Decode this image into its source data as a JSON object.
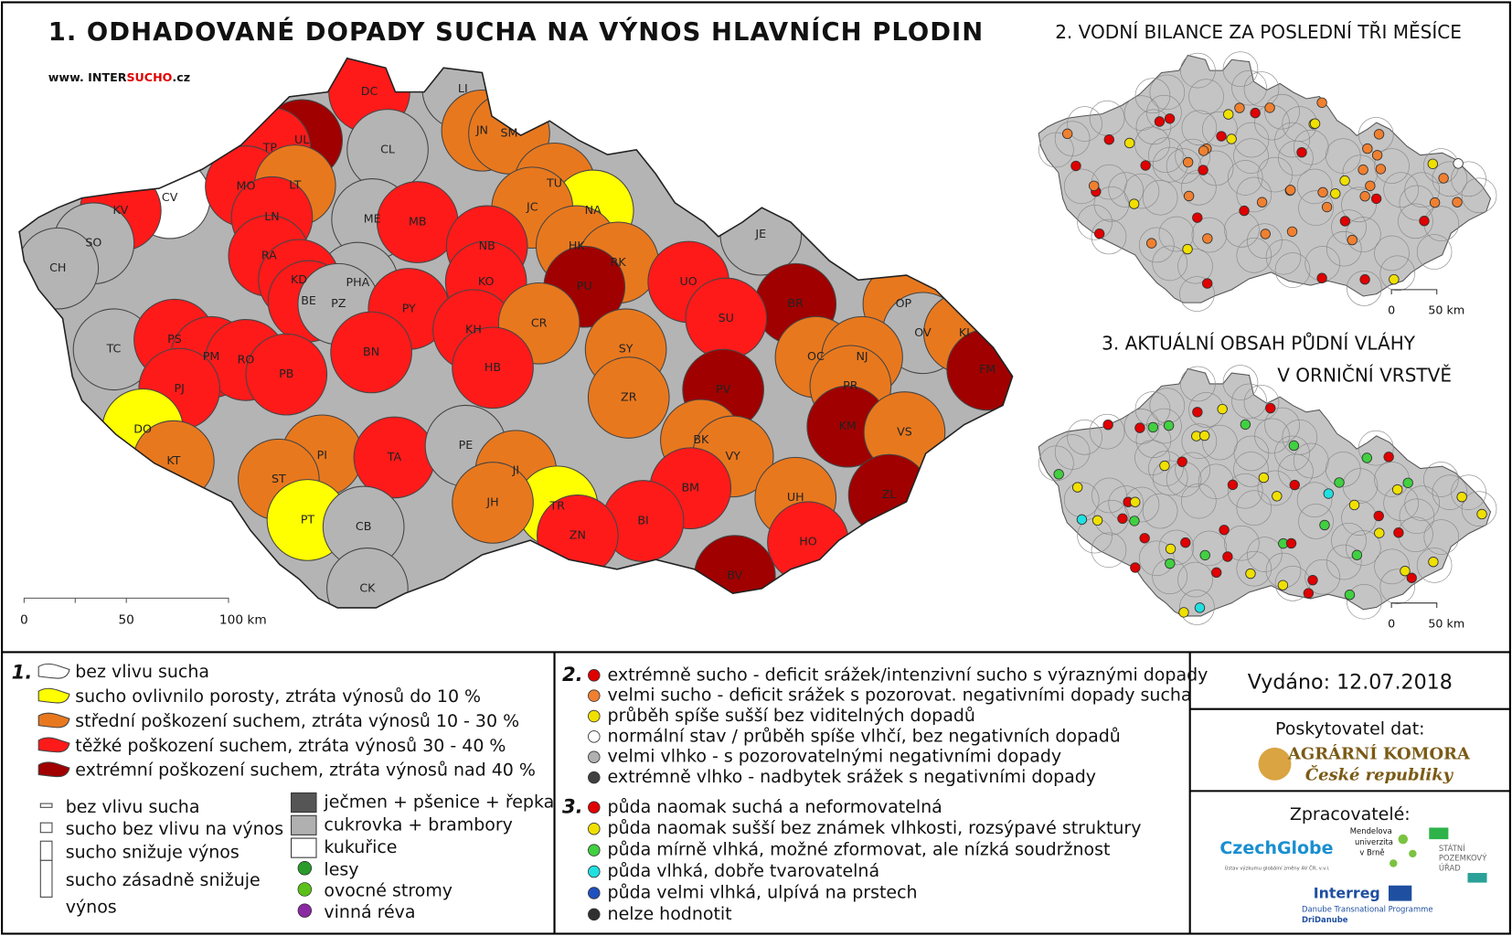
{
  "title": "1. ODHADOVANÉ DOPADY SUCHA NA VÝNOS HLAVNÍCH PLODIN",
  "website": {
    "prefix": "www. INTER",
    "highlight": "SUCHO",
    "suffix": ".cz"
  },
  "map1": {
    "no_data_color": "#b4b4b4",
    "scale_labels": [
      "0",
      "50",
      "100 km"
    ],
    "districts": [
      {
        "code": "DC",
        "category": 3
      },
      {
        "code": "UL",
        "category": 4
      },
      {
        "code": "LI",
        "category": null
      },
      {
        "code": "CL",
        "category": null
      },
      {
        "code": "TP",
        "category": 3
      },
      {
        "code": "JN",
        "category": 2
      },
      {
        "code": "SM",
        "category": 2
      },
      {
        "code": "CV",
        "category": 0
      },
      {
        "code": "KV",
        "category": 3
      },
      {
        "code": "MO",
        "category": 3
      },
      {
        "code": "LT",
        "category": 2
      },
      {
        "code": "TU",
        "category": 2
      },
      {
        "code": "NA",
        "category": 1
      },
      {
        "code": "SO",
        "category": null
      },
      {
        "code": "CH",
        "category": null
      },
      {
        "code": "LN",
        "category": 3
      },
      {
        "code": "ME",
        "category": null
      },
      {
        "code": "MB",
        "category": 3
      },
      {
        "code": "JC",
        "category": 2
      },
      {
        "code": "JE",
        "category": null
      },
      {
        "code": "RA",
        "category": 3
      },
      {
        "code": "NB",
        "category": 3
      },
      {
        "code": "HK",
        "category": 2
      },
      {
        "code": "RK",
        "category": 2
      },
      {
        "code": "PHA",
        "category": null
      },
      {
        "code": "KD",
        "category": 3
      },
      {
        "code": "BE",
        "category": 3
      },
      {
        "code": "PZ",
        "category": null
      },
      {
        "code": "KO",
        "category": 3
      },
      {
        "code": "PU",
        "category": 4
      },
      {
        "code": "UO",
        "category": 3
      },
      {
        "code": "BR",
        "category": 4
      },
      {
        "code": "OP",
        "category": 2
      },
      {
        "code": "OV",
        "category": null
      },
      {
        "code": "KI",
        "category": 2
      },
      {
        "code": "TC",
        "category": null
      },
      {
        "code": "PS",
        "category": 3
      },
      {
        "code": "PY",
        "category": 3
      },
      {
        "code": "KH",
        "category": 3
      },
      {
        "code": "CR",
        "category": 2
      },
      {
        "code": "SU",
        "category": 3
      },
      {
        "code": "PM",
        "category": 3
      },
      {
        "code": "RO",
        "category": 3
      },
      {
        "code": "BN",
        "category": 3
      },
      {
        "code": "SY",
        "category": 2
      },
      {
        "code": "OC",
        "category": 2
      },
      {
        "code": "NJ",
        "category": 2
      },
      {
        "code": "FM",
        "category": 4
      },
      {
        "code": "PB",
        "category": 3
      },
      {
        "code": "HB",
        "category": 3
      },
      {
        "code": "PJ",
        "category": 3
      },
      {
        "code": "PV",
        "category": 4
      },
      {
        "code": "PR",
        "category": 2
      },
      {
        "code": "DO",
        "category": 1
      },
      {
        "code": "ZR",
        "category": 2
      },
      {
        "code": "KM",
        "category": 4
      },
      {
        "code": "VS",
        "category": 2
      },
      {
        "code": "KT",
        "category": 2
      },
      {
        "code": "PI",
        "category": 2
      },
      {
        "code": "TA",
        "category": 3
      },
      {
        "code": "PE",
        "category": null
      },
      {
        "code": "BK",
        "category": 2
      },
      {
        "code": "VY",
        "category": 2
      },
      {
        "code": "JI",
        "category": 2
      },
      {
        "code": "ST",
        "category": 2
      },
      {
        "code": "BM",
        "category": 3
      },
      {
        "code": "ZL",
        "category": 4
      },
      {
        "code": "TR",
        "category": 1
      },
      {
        "code": "JH",
        "category": 2
      },
      {
        "code": "UH",
        "category": 2
      },
      {
        "code": "PT",
        "category": 1
      },
      {
        "code": "CB",
        "category": null
      },
      {
        "code": "BI",
        "category": 3
      },
      {
        "code": "ZN",
        "category": 3
      },
      {
        "code": "HO",
        "category": 3
      },
      {
        "code": "BV",
        "category": 4
      },
      {
        "code": "CK",
        "category": null
      }
    ]
  },
  "map2": {
    "title": "2. VODNÍ BILANCE ZA POSLEDNÍ TŘI MĚSÍCE",
    "scale_labels": [
      "0",
      "50 km"
    ],
    "points": [
      0,
      1,
      2,
      0,
      0,
      1,
      2,
      0,
      1,
      1,
      0,
      2,
      1,
      0,
      1,
      0,
      2,
      1,
      1,
      0,
      0,
      1,
      2,
      1,
      0,
      1,
      1,
      3,
      0,
      1,
      2,
      0,
      1,
      0,
      1,
      2,
      1,
      0,
      1,
      1,
      0,
      2,
      1,
      0,
      1,
      1,
      2,
      0,
      1,
      0,
      1,
      1,
      2,
      0,
      1,
      0,
      1,
      2,
      1,
      1
    ]
  },
  "map3": {
    "title_lines": [
      "3. AKTUÁLNÍ OBSAH PŮDNÍ VLÁHY",
      "V ORNIČNÍ VRSTVĚ"
    ],
    "scale_labels": [
      "0",
      "50 km"
    ],
    "points": [
      0,
      1,
      2,
      0,
      1,
      0,
      2,
      1,
      0,
      0,
      1,
      2,
      3,
      0,
      1,
      0,
      2,
      2,
      1,
      0,
      0,
      1,
      2,
      0,
      1,
      0,
      3,
      1,
      2,
      0,
      1,
      0,
      2,
      1,
      0,
      2,
      1,
      0,
      1,
      2,
      0,
      1,
      2,
      0,
      3,
      1,
      0,
      2,
      1,
      0,
      1,
      2,
      0,
      1,
      0,
      2,
      1,
      0,
      1,
      2
    ]
  },
  "legend1": {
    "number": "1.",
    "items": [
      {
        "label": "bez vlivu sucha",
        "color": "#ffffff"
      },
      {
        "label": "sucho ovlivnilo porosty, ztráta výnosů do 10 %",
        "color": "#ffff00"
      },
      {
        "label": "střední poškození suchem, ztráta výnosů 10 - 30 %",
        "color": "#e8781e"
      },
      {
        "label": "těžké poškození suchem, ztráta výnosů 30 - 40 %",
        "color": "#ff1a1a"
      },
      {
        "label": "extrémní poškození suchem, ztráta výnosů nad 40 %",
        "color": "#a00000"
      }
    ],
    "bar_sizes": [
      {
        "label_lines": [
          "bez vlivu sucha"
        ]
      },
      {
        "label_lines": [
          "sucho bez vlivu na výnos"
        ]
      },
      {
        "label_lines": [
          "sucho snižuje výnos"
        ]
      },
      {
        "label_lines": [
          "sucho zásadně snižuje",
          "výnos"
        ]
      }
    ],
    "crops": [
      {
        "label": "ječmen + pšenice + řepka",
        "color": "#555555"
      },
      {
        "label": "cukrovka + brambory",
        "color": "#b0b0b0"
      },
      {
        "label": "kukuřice",
        "color": "#ffffff"
      }
    ],
    "symbols": [
      "lesy",
      "ovocné stromy",
      "vinná réva"
    ]
  },
  "legend2": {
    "number": "2.",
    "items": [
      {
        "label": "extrémně sucho - deficit srážek/intenzivní sucho s výraznými dopady",
        "color": "#e00000"
      },
      {
        "label": "velmi sucho - deficit srážek s pozorovat. negativními dopady sucha",
        "color": "#f08030"
      },
      {
        "label": "průběh spíše sušší bez viditelných dopadů",
        "color": "#f0e000"
      },
      {
        "label": "normální stav / průběh spíše vlhčí, bez negativních dopadů",
        "color": "#ffffff"
      },
      {
        "label": "velmi vlhko - s pozorovatelnými negativními dopady",
        "color": "#b0b0b0"
      },
      {
        "label": "extrémně vlhko - nadbytek srážek s negativními dopady",
        "color": "#404040"
      }
    ]
  },
  "legend3": {
    "number": "3.",
    "items": [
      {
        "label": "půda naomak suchá a neformovatelná",
        "color": "#e00000"
      },
      {
        "label": "půda naomak sušší bez známek vlhkosti, rozsýpavé struktury",
        "color": "#f0e000"
      },
      {
        "label": "půda mírně vlhká, možné zformovat, ale nízká soudržnost",
        "color": "#40d040"
      },
      {
        "label": "půda vlhká, dobře tvarovatelná",
        "color": "#20e0e0"
      },
      {
        "label": "půda velmi vlhká, ulpívá na prstech",
        "color": "#2050c0"
      },
      {
        "label": "nelze hodnotit",
        "color": "#303030"
      }
    ]
  },
  "issued": "Vydáno: 12.07.2018",
  "provider": {
    "heading": "Poskytovatel dat:",
    "name_lines": [
      "AGRÁRNÍ KOMORA",
      "České republiky"
    ]
  },
  "processors": {
    "heading": "Zpracovatelé:",
    "czechglobe": "CzechGlobe",
    "czechglobe_sub": "Ústav výzkumu globální změny AV ČR, v.v.i.",
    "mendel_lines": [
      "Mendelova",
      "univerzita",
      "v Brně"
    ],
    "spu_lines": [
      "STÁTNÍ",
      "POZEMKOVÝ",
      "ÚŘAD"
    ],
    "interreg": "Interreg",
    "programme": "Danube Transnational Programme",
    "project": "DriDanube"
  }
}
